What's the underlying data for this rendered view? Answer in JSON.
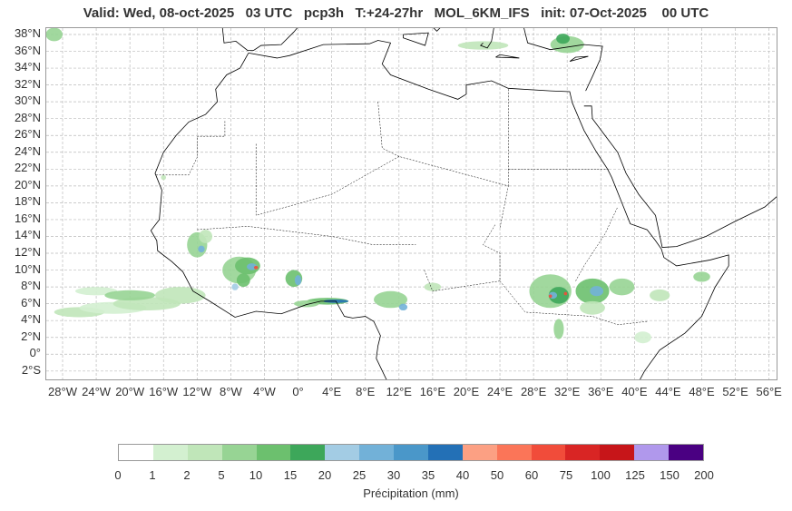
{
  "title": "Valid: Wed, 08-oct-2025   03 UTC   pcp3h   T:+24-27hr   MOL_6KM_IFS   init: 07-Oct-2025    00 UTC",
  "lat_labels": [
    "38°N",
    "36°N",
    "34°N",
    "32°N",
    "30°N",
    "28°N",
    "26°N",
    "24°N",
    "22°N",
    "20°N",
    "18°N",
    "16°N",
    "14°N",
    "12°N",
    "10°N",
    "8°N",
    "6°N",
    "4°N",
    "2°N",
    "0°",
    "2°S"
  ],
  "lat_values": [
    38,
    36,
    34,
    32,
    30,
    28,
    26,
    24,
    22,
    20,
    18,
    16,
    14,
    12,
    10,
    8,
    6,
    4,
    2,
    0,
    -2
  ],
  "lon_labels": [
    "28°W",
    "24°W",
    "20°W",
    "16°W",
    "12°W",
    "8°W",
    "4°W",
    "0°",
    "4°E",
    "8°E",
    "12°E",
    "16°E",
    "20°E",
    "24°E",
    "28°E",
    "32°E",
    "36°E",
    "40°E",
    "44°E",
    "48°E",
    "52°E",
    "56°E"
  ],
  "lon_values": [
    -28,
    -24,
    -20,
    -16,
    -12,
    -8,
    -4,
    0,
    4,
    8,
    12,
    16,
    20,
    24,
    28,
    32,
    36,
    40,
    44,
    48,
    52,
    56
  ],
  "colorbar": {
    "title": "Précipitation (mm)",
    "ticks": [
      "0",
      "1",
      "2",
      "5",
      "10",
      "15",
      "20",
      "25",
      "30",
      "35",
      "40",
      "50",
      "60",
      "75",
      "100",
      "125",
      "150",
      "200"
    ],
    "colors": [
      "#ffffff",
      "#d3f0d0",
      "#c0e6b9",
      "#97d494",
      "#6cc06e",
      "#3da75a",
      "#a3cce4",
      "#72b1d8",
      "#4a97c9",
      "#2370b6",
      "#fca083",
      "#fb7558",
      "#f14c3a",
      "#d92524",
      "#c71519",
      "#b098ec",
      "#4a0082"
    ]
  }
}
